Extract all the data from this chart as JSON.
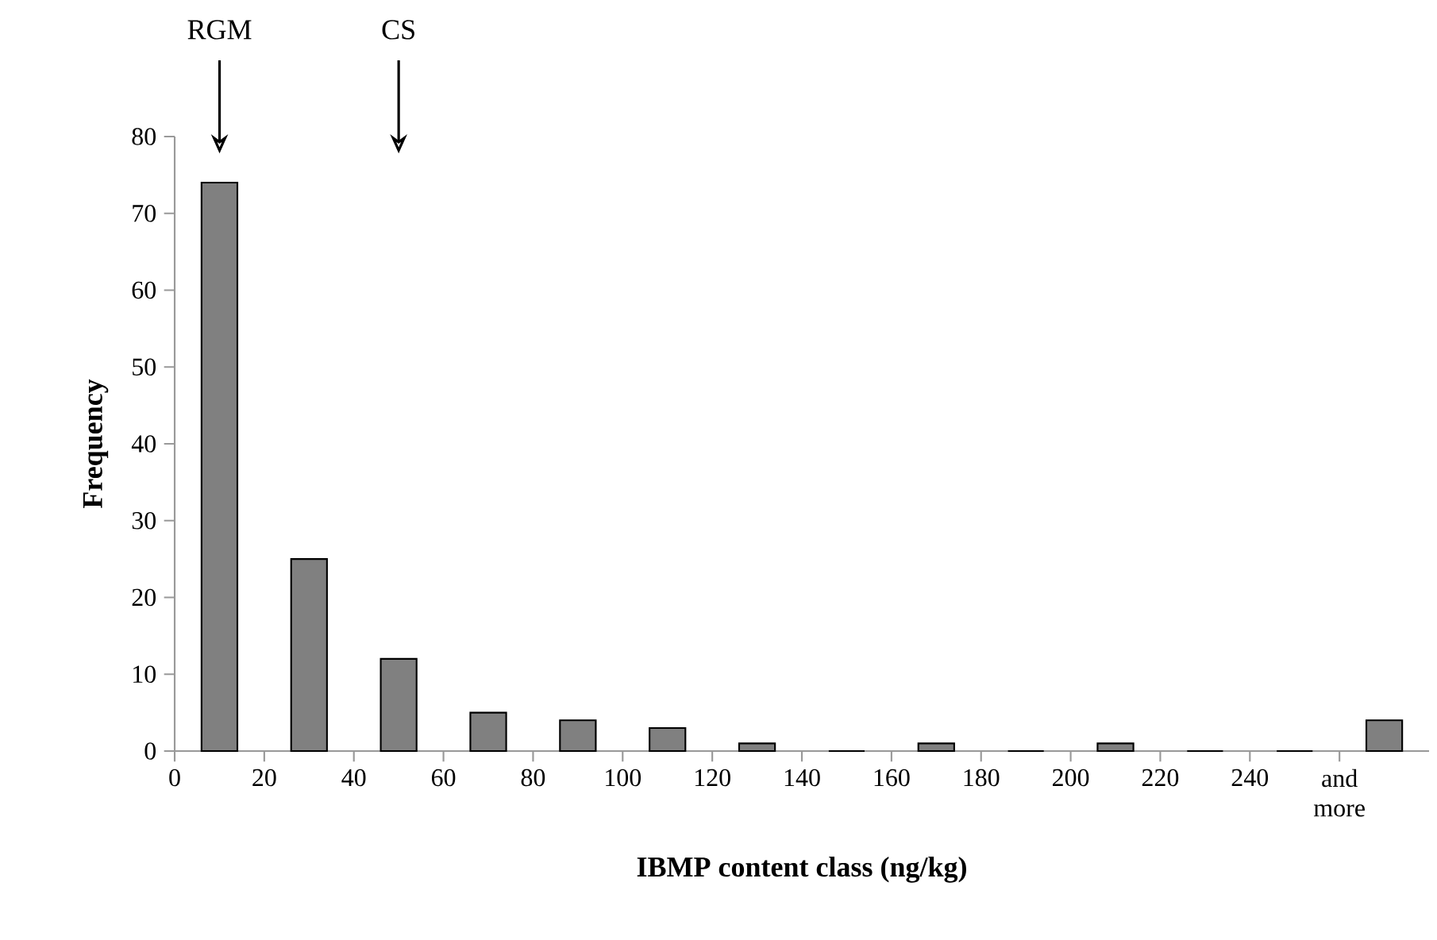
{
  "chart_data": {
    "type": "histogram",
    "xlabel": "IBMP content class (ng/kg)",
    "ylabel": "Frequency",
    "bins": [
      0,
      20,
      40,
      60,
      80,
      100,
      120,
      140,
      160,
      180,
      200,
      220,
      240,
      260,
      280
    ],
    "values": [
      74,
      25,
      12,
      5,
      4,
      3,
      1,
      0,
      1,
      0,
      1,
      0,
      0,
      4
    ],
    "color": "#808080",
    "xlim": [
      0,
      280
    ],
    "ylim": [
      0,
      80
    ],
    "xticks": [
      0,
      20,
      40,
      60,
      80,
      100,
      120,
      140,
      160,
      180,
      200,
      220,
      240,
      {
        "value": 260,
        "label": "and more"
      }
    ],
    "yticks": [
      0,
      10,
      20,
      30,
      40,
      50,
      60,
      70,
      80
    ],
    "annotations": [
      "RGM",
      "CS"
    ],
    "grid": false
  }
}
